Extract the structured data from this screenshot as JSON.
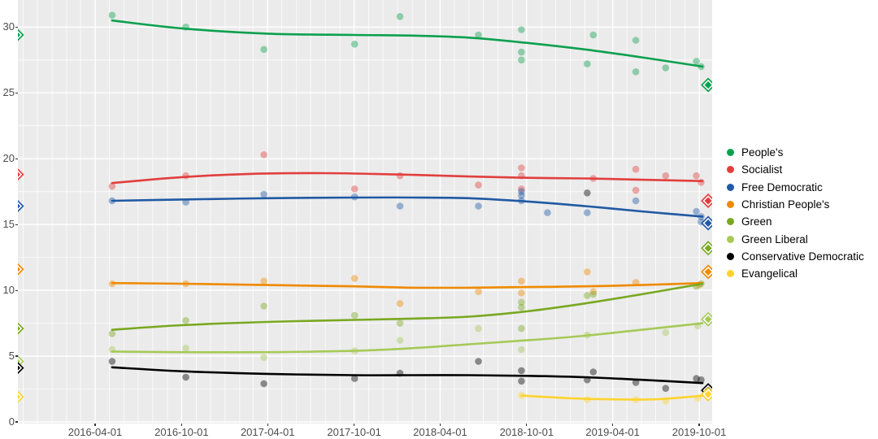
{
  "figure": {
    "panel_background": "#EBEBEB",
    "grid_color": "#FFFFFF",
    "axis_text_color": "#4D4D4D",
    "tick_color": "#333333"
  },
  "chart_data": {
    "type": "scatter",
    "title": "",
    "xlabel": "",
    "ylabel": "",
    "x_ticks": [
      "2016-04-01",
      "2016-10-01",
      "2017-04-01",
      "2017-10-01",
      "2018-04-01",
      "2018-10-01",
      "2019-04-01",
      "2019-10-01"
    ],
    "y_ticks": [
      0,
      5,
      10,
      15,
      20,
      25,
      30
    ],
    "y_minor_ticks": [
      2.5,
      7.5,
      12.5,
      17.5,
      22.5,
      27.5
    ],
    "x_domain": [
      "2015-10-21",
      "2019-10-27"
    ],
    "y_domain": [
      0,
      32.1
    ],
    "legend_position": "right",
    "election_dates": [
      "2015-10-18",
      "2019-10-20"
    ],
    "series": [
      {
        "name": "People's",
        "color": "#0ba04e",
        "points": [
          [
            "2016-05-07",
            30.9
          ],
          [
            "2016-10-10",
            30.0
          ],
          [
            "2017-03-24",
            28.3
          ],
          [
            "2017-10-02",
            28.7
          ],
          [
            "2018-01-06",
            30.8
          ],
          [
            "2018-06-21",
            29.4
          ],
          [
            "2018-09-20",
            29.8
          ],
          [
            "2018-09-20",
            28.1
          ],
          [
            "2018-09-20",
            27.5
          ],
          [
            "2019-02-06",
            27.2
          ],
          [
            "2019-02-19",
            29.4
          ],
          [
            "2019-05-20",
            29.0
          ],
          [
            "2019-05-20",
            26.6
          ],
          [
            "2019-07-22",
            26.9
          ],
          [
            "2019-09-25",
            27.4
          ],
          [
            "2019-10-05",
            27.0
          ]
        ],
        "trend": [
          [
            "2016-05-07",
            30.5
          ],
          [
            "2016-10-01",
            29.9
          ],
          [
            "2017-04-01",
            29.5
          ],
          [
            "2017-10-01",
            29.4
          ],
          [
            "2018-02-01",
            29.35
          ],
          [
            "2018-06-01",
            29.2
          ],
          [
            "2018-10-01",
            28.8
          ],
          [
            "2019-02-01",
            28.3
          ],
          [
            "2019-06-01",
            27.7
          ],
          [
            "2019-10-08",
            27.0
          ]
        ],
        "elections": [
          [
            "2015-10-18",
            29.4
          ],
          [
            "2019-10-20",
            25.6
          ]
        ]
      },
      {
        "name": "Socialist",
        "color": "#e23e3e",
        "points": [
          [
            "2016-05-07",
            17.9
          ],
          [
            "2016-10-10",
            18.7
          ],
          [
            "2017-03-24",
            20.3
          ],
          [
            "2017-10-02",
            17.7
          ],
          [
            "2018-01-06",
            18.7
          ],
          [
            "2018-06-21",
            18.0
          ],
          [
            "2018-09-20",
            19.3
          ],
          [
            "2018-09-20",
            18.7
          ],
          [
            "2018-09-20",
            17.7
          ],
          [
            "2019-02-19",
            18.5
          ],
          [
            "2019-05-20",
            19.2
          ],
          [
            "2019-05-20",
            17.6
          ],
          [
            "2019-07-22",
            18.7
          ],
          [
            "2019-09-25",
            18.7
          ],
          [
            "2019-10-05",
            18.2
          ]
        ],
        "trend": [
          [
            "2016-05-07",
            18.15
          ],
          [
            "2016-10-01",
            18.6
          ],
          [
            "2017-03-01",
            18.85
          ],
          [
            "2017-08-01",
            18.9
          ],
          [
            "2018-01-01",
            18.8
          ],
          [
            "2018-06-01",
            18.65
          ],
          [
            "2018-10-01",
            18.55
          ],
          [
            "2019-02-01",
            18.5
          ],
          [
            "2019-06-01",
            18.4
          ],
          [
            "2019-10-08",
            18.3
          ]
        ],
        "elections": [
          [
            "2015-10-18",
            18.8
          ],
          [
            "2019-10-20",
            16.8
          ]
        ]
      },
      {
        "name": "Free Democratic",
        "color": "#2059a4",
        "points": [
          [
            "2016-05-07",
            16.8
          ],
          [
            "2016-10-10",
            16.7
          ],
          [
            "2017-03-24",
            17.3
          ],
          [
            "2017-10-02",
            17.1
          ],
          [
            "2018-01-06",
            16.4
          ],
          [
            "2018-06-21",
            16.4
          ],
          [
            "2018-09-20",
            17.5
          ],
          [
            "2018-09-20",
            17.2
          ],
          [
            "2018-09-20",
            16.8
          ],
          [
            "2018-11-14",
            15.9
          ],
          [
            "2019-02-06",
            15.9
          ],
          [
            "2019-05-20",
            16.8
          ],
          [
            "2019-09-25",
            16.0
          ],
          [
            "2019-10-05",
            15.6
          ],
          [
            "2019-10-05",
            15.2
          ]
        ],
        "trend": [
          [
            "2016-05-07",
            16.8
          ],
          [
            "2016-10-01",
            16.9
          ],
          [
            "2017-04-01",
            17.0
          ],
          [
            "2017-10-01",
            17.05
          ],
          [
            "2018-02-01",
            17.05
          ],
          [
            "2018-06-01",
            17.0
          ],
          [
            "2018-10-01",
            16.75
          ],
          [
            "2019-02-01",
            16.4
          ],
          [
            "2019-06-01",
            16.0
          ],
          [
            "2019-10-08",
            15.6
          ]
        ],
        "elections": [
          [
            "2015-10-18",
            16.4
          ],
          [
            "2019-10-20",
            15.1
          ]
        ]
      },
      {
        "name": "Christian People's",
        "color": "#ef8a00",
        "points": [
          [
            "2016-05-07",
            10.5
          ],
          [
            "2016-10-10",
            10.5
          ],
          [
            "2017-03-24",
            10.7
          ],
          [
            "2017-10-02",
            10.9
          ],
          [
            "2018-01-06",
            9.0
          ],
          [
            "2018-06-21",
            9.9
          ],
          [
            "2018-09-20",
            10.7
          ],
          [
            "2018-09-20",
            9.8
          ],
          [
            "2019-02-06",
            11.4
          ],
          [
            "2019-02-19",
            9.9
          ],
          [
            "2019-05-20",
            10.6
          ],
          [
            "2019-10-01",
            10.4
          ]
        ],
        "trend": [
          [
            "2016-05-07",
            10.55
          ],
          [
            "2016-10-01",
            10.5
          ],
          [
            "2017-04-01",
            10.4
          ],
          [
            "2017-10-01",
            10.3
          ],
          [
            "2018-02-01",
            10.2
          ],
          [
            "2018-06-01",
            10.2
          ],
          [
            "2018-10-01",
            10.25
          ],
          [
            "2019-02-01",
            10.3
          ],
          [
            "2019-06-01",
            10.4
          ],
          [
            "2019-10-08",
            10.55
          ]
        ],
        "elections": [
          [
            "2015-10-18",
            11.6
          ],
          [
            "2019-10-20",
            11.4
          ]
        ]
      },
      {
        "name": "Green",
        "color": "#79a821",
        "points": [
          [
            "2016-05-07",
            6.7
          ],
          [
            "2016-10-10",
            7.7
          ],
          [
            "2017-03-24",
            8.8
          ],
          [
            "2017-10-02",
            8.1
          ],
          [
            "2018-01-06",
            7.5
          ],
          [
            "2018-09-20",
            9.1
          ],
          [
            "2018-09-20",
            8.7
          ],
          [
            "2018-09-20",
            7.1
          ],
          [
            "2019-02-06",
            9.6
          ],
          [
            "2019-02-19",
            9.7
          ],
          [
            "2019-09-25",
            10.3
          ],
          [
            "2019-10-05",
            10.5
          ]
        ],
        "trend": [
          [
            "2016-05-07",
            7.0
          ],
          [
            "2016-10-01",
            7.35
          ],
          [
            "2017-04-01",
            7.6
          ],
          [
            "2017-10-01",
            7.75
          ],
          [
            "2018-02-01",
            7.85
          ],
          [
            "2018-06-01",
            8.0
          ],
          [
            "2018-10-01",
            8.4
          ],
          [
            "2019-02-01",
            9.0
          ],
          [
            "2019-06-01",
            9.7
          ],
          [
            "2019-10-08",
            10.5
          ]
        ],
        "elections": [
          [
            "2015-10-18",
            7.1
          ],
          [
            "2019-10-20",
            13.2
          ]
        ]
      },
      {
        "name": "Green Liberal",
        "color": "#a6c957",
        "points": [
          [
            "2016-05-07",
            5.5
          ],
          [
            "2016-10-10",
            5.6
          ],
          [
            "2017-03-24",
            4.9
          ],
          [
            "2017-10-02",
            5.4
          ],
          [
            "2018-01-06",
            6.2
          ],
          [
            "2018-06-21",
            7.1
          ],
          [
            "2018-09-20",
            5.5
          ],
          [
            "2019-02-06",
            6.6
          ],
          [
            "2019-07-22",
            6.8
          ],
          [
            "2019-09-28",
            7.3
          ]
        ],
        "trend": [
          [
            "2016-05-07",
            5.35
          ],
          [
            "2016-10-01",
            5.3
          ],
          [
            "2017-04-01",
            5.3
          ],
          [
            "2017-10-01",
            5.4
          ],
          [
            "2018-02-01",
            5.6
          ],
          [
            "2018-06-01",
            5.9
          ],
          [
            "2018-10-01",
            6.2
          ],
          [
            "2019-02-01",
            6.55
          ],
          [
            "2019-06-01",
            7.0
          ],
          [
            "2019-10-08",
            7.5
          ]
        ],
        "elections": [
          [
            "2015-10-18",
            4.6
          ],
          [
            "2019-10-20",
            7.8
          ]
        ]
      },
      {
        "name": "Conservative Democratic",
        "color": "#000000",
        "points": [
          [
            "2016-05-07",
            4.6
          ],
          [
            "2016-10-10",
            3.4
          ],
          [
            "2017-03-24",
            2.9
          ],
          [
            "2017-10-02",
            3.3
          ],
          [
            "2018-01-06",
            3.7
          ],
          [
            "2018-06-21",
            4.6
          ],
          [
            "2018-09-20",
            3.9
          ],
          [
            "2018-09-20",
            3.1
          ],
          [
            "2019-02-06",
            17.4
          ],
          [
            "2019-02-06",
            3.2
          ],
          [
            "2019-02-19",
            3.8
          ],
          [
            "2019-05-20",
            3.0
          ],
          [
            "2019-07-22",
            2.55
          ],
          [
            "2019-09-25",
            3.3
          ],
          [
            "2019-10-05",
            3.2
          ]
        ],
        "trend": [
          [
            "2016-05-07",
            4.15
          ],
          [
            "2016-10-01",
            3.85
          ],
          [
            "2017-04-01",
            3.65
          ],
          [
            "2017-10-01",
            3.55
          ],
          [
            "2018-02-01",
            3.55
          ],
          [
            "2018-06-01",
            3.55
          ],
          [
            "2018-10-01",
            3.5
          ],
          [
            "2019-02-01",
            3.4
          ],
          [
            "2019-06-01",
            3.2
          ],
          [
            "2019-10-08",
            2.95
          ]
        ],
        "elections": [
          [
            "2015-10-18",
            4.1
          ],
          [
            "2019-10-20",
            2.4
          ]
        ]
      },
      {
        "name": "Evangelical",
        "color": "#fdd32e",
        "points": [
          [
            "2018-09-20",
            2.0
          ],
          [
            "2019-02-06",
            1.7
          ],
          [
            "2019-05-20",
            1.7
          ],
          [
            "2019-07-22",
            1.6
          ],
          [
            "2019-09-28",
            1.8
          ]
        ],
        "trend": [
          [
            "2018-09-20",
            2.0
          ],
          [
            "2019-01-01",
            1.8
          ],
          [
            "2019-04-01",
            1.72
          ],
          [
            "2019-07-01",
            1.72
          ],
          [
            "2019-10-12",
            2.0
          ]
        ],
        "elections": [
          [
            "2015-10-18",
            1.9
          ],
          [
            "2019-10-20",
            2.1
          ]
        ]
      }
    ]
  }
}
